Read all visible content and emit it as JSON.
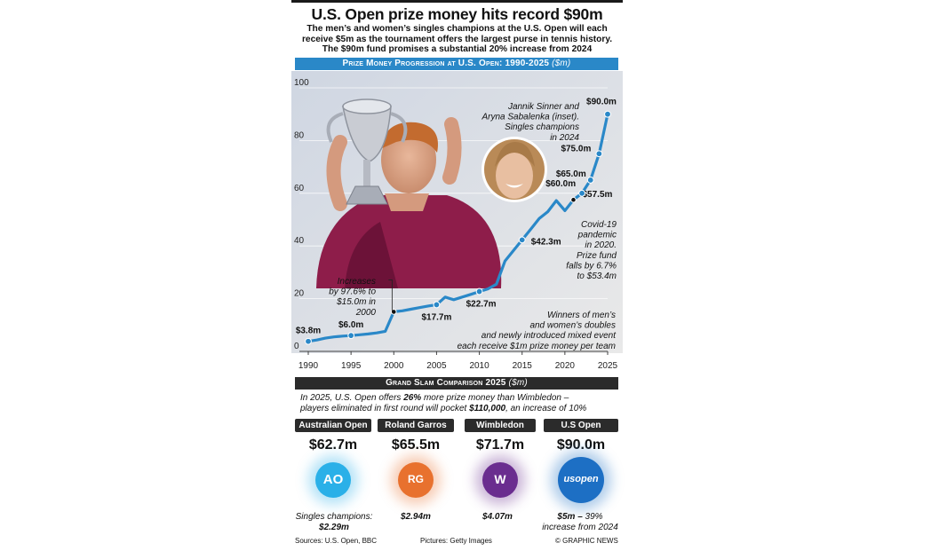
{
  "headline": "U.S. Open prize money hits record $90m",
  "standfirst": [
    "The men’s and women’s singles champions at the U.S. Open will each",
    "receive $5m as the tournament offers the largest purse in tennis history.",
    "The $90m fund promises a substantial 20% increase from 2024"
  ],
  "chart_section": {
    "title": "Prize Money Progression at U.S. Open: 1990-2025",
    "unit": "($m)"
  },
  "chart_data": {
    "type": "line",
    "title": "Prize Money Progression at U.S. Open: 1990-2025 ($m)",
    "xlim": [
      1990,
      2025
    ],
    "ylim": [
      0,
      100
    ],
    "x_ticks": [
      "1990",
      "1995",
      "2000",
      "2005",
      "2010",
      "2015",
      "2020",
      "2025"
    ],
    "y_ticks": [
      "0",
      "20",
      "40",
      "60",
      "80",
      "100"
    ],
    "grid": true,
    "series": [
      {
        "color": "#2a88c8",
        "points": [
          [
            1990,
            3.8
          ],
          [
            1991,
            4.3
          ],
          [
            1992,
            5.0
          ],
          [
            1993,
            5.5
          ],
          [
            1994,
            5.8
          ],
          [
            1995,
            6.0
          ],
          [
            1996,
            6.3
          ],
          [
            1997,
            6.6
          ],
          [
            1998,
            7.0
          ],
          [
            1999,
            7.6
          ],
          [
            2000,
            15.0
          ],
          [
            2001,
            15.4
          ],
          [
            2002,
            16.0
          ],
          [
            2003,
            16.6
          ],
          [
            2004,
            17.2
          ],
          [
            2005,
            17.7
          ],
          [
            2006,
            20.6
          ],
          [
            2007,
            19.6
          ],
          [
            2008,
            20.6
          ],
          [
            2009,
            21.6
          ],
          [
            2010,
            22.7
          ],
          [
            2011,
            23.7
          ],
          [
            2012,
            25.5
          ],
          [
            2013,
            34.3
          ],
          [
            2014,
            38.3
          ],
          [
            2015,
            42.3
          ],
          [
            2016,
            46.3
          ],
          [
            2017,
            50.4
          ],
          [
            2018,
            53.0
          ],
          [
            2019,
            57.2
          ],
          [
            2020,
            53.4
          ],
          [
            2021,
            57.5
          ],
          [
            2022,
            60.0
          ],
          [
            2023,
            65.0
          ],
          [
            2024,
            75.0
          ],
          [
            2025,
            90.0
          ]
        ]
      }
    ],
    "labels": [
      {
        "x": 1990,
        "y": 3.8,
        "text": "$3.8m"
      },
      {
        "x": 1995,
        "y": 6.0,
        "text": "$6.0m"
      },
      {
        "x": 2005,
        "y": 17.7,
        "text": "$17.7m"
      },
      {
        "x": 2010,
        "y": 22.7,
        "text": "$22.7m"
      },
      {
        "x": 2015,
        "y": 42.3,
        "text": "$42.3m"
      },
      {
        "x": 2021,
        "y": 57.5,
        "text": "$57.5m"
      },
      {
        "x": 2022,
        "y": 60.0,
        "text": "$60.0m"
      },
      {
        "x": 2023,
        "y": 65.0,
        "text": "$65.0m"
      },
      {
        "x": 2024,
        "y": 75.0,
        "text": "$75.0m"
      },
      {
        "x": 2025,
        "y": 90.0,
        "text": "$90.0m"
      }
    ],
    "annotations": {
      "y2000": [
        "Increases",
        "by 97.6% to",
        "$15.0m in",
        "2000"
      ],
      "covid": [
        "Covid-19",
        "pandemic",
        "in 2020.",
        "Prize fund",
        "falls by 6.7%",
        "to $53.4m"
      ],
      "winners": [
        "Winners of men’s",
        "and women’s doubles",
        "and newly introduced mixed event",
        "each receive $1m prize money per team"
      ],
      "photo_caption": [
        "Jannik Sinner and",
        "Aryna Sabalenka (inset).",
        "Singles champions",
        "in 2024"
      ]
    }
  },
  "comparison_section": {
    "title": "Grand Slam Comparison 2025",
    "unit": "($m)"
  },
  "comparison_note": {
    "line1_pre": "In 2025, U.S. Open offers ",
    "line1_bold": "26%",
    "line1_post": " more prize money than Wimbledon –",
    "line2_pre": "players eliminated in first round will pocket ",
    "line2_bold": "$110,000",
    "line2_post": ", an increase of 10%"
  },
  "grand_slams": [
    {
      "name": "Australian Open",
      "amount": "$62.7m",
      "note_pre": "Singles champions:",
      "note_bold": "$2.29m",
      "color": "#2ab0e8",
      "logo_text": "AO"
    },
    {
      "name": "Roland Garros",
      "amount": "$65.5m",
      "note_pre": "",
      "note_bold": "$2.94m",
      "color": "#e8712e",
      "logo_text": "RG"
    },
    {
      "name": "Wimbledon",
      "amount": "$71.7m",
      "note_pre": "",
      "note_bold": "$4.07m",
      "color": "#6a2d8f",
      "logo_text": "W"
    },
    {
      "name": "U.S Open",
      "amount": "$90.0m",
      "note_bold": "$5m –",
      "note_post": " 39%",
      "note_line2": "increase from 2024",
      "color": "#1d6fc4",
      "logo_text": "usopen"
    }
  ],
  "footer": {
    "sources": "Sources: U.S. Open, BBC",
    "pictures": "Pictures: Getty Images",
    "credit": "© GRAPHIC NEWS"
  }
}
